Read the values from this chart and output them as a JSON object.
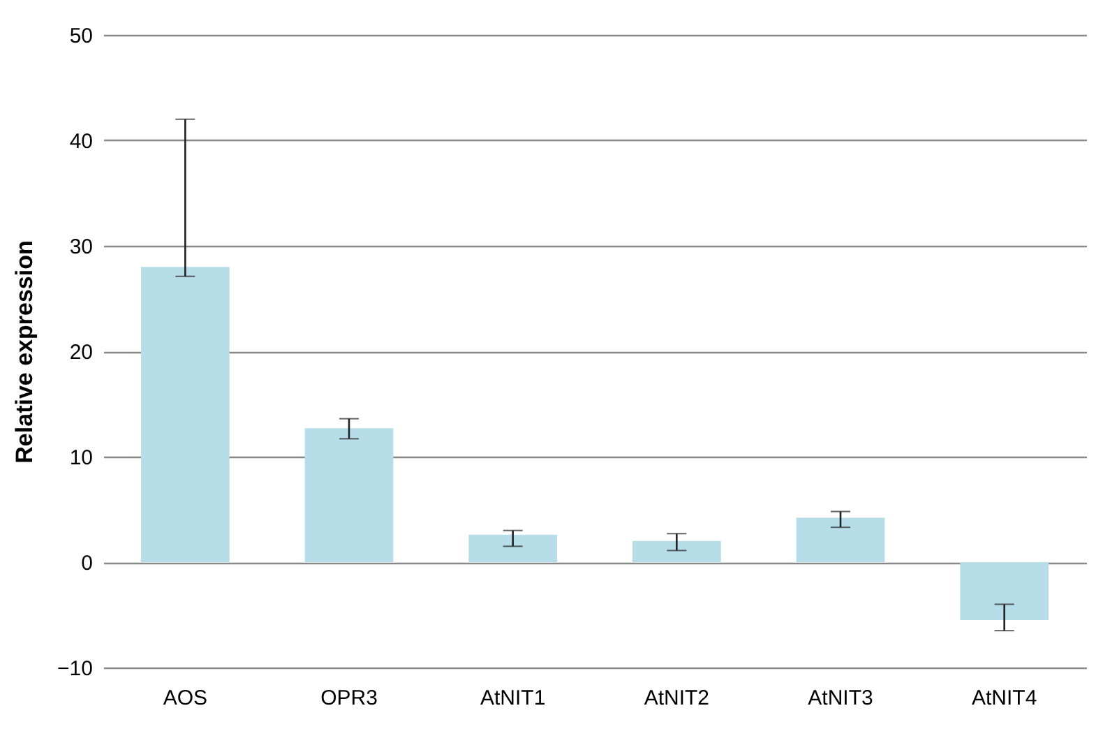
{
  "chart_data": {
    "type": "bar",
    "ylabel": "Relative expression",
    "categories": [
      "AOS",
      "OPR3",
      "AtNIT1",
      "AtNIT2",
      "AtNIT3",
      "AtNIT4"
    ],
    "values": [
      28,
      12.7,
      2.6,
      2.0,
      4.2,
      -5.5
    ],
    "errors": [
      [
        27.1,
        42
      ],
      [
        11.7,
        13.6
      ],
      [
        1.5,
        3.0
      ],
      [
        1.1,
        2.7
      ],
      [
        3.3,
        4.8
      ],
      [
        -6.5,
        -4.0
      ]
    ],
    "color": "#b7dde8",
    "ylim": [
      -10,
      50
    ],
    "yticks": [
      -10,
      0,
      10,
      20,
      30,
      40,
      50
    ],
    "grid": "y"
  }
}
